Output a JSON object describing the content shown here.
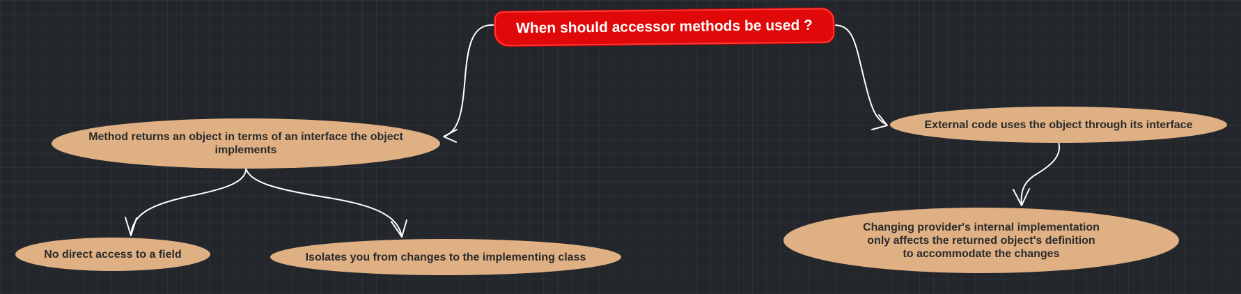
{
  "diagram": {
    "root": {
      "text": "When should accessor methods be used ?",
      "color": "#e00808"
    },
    "nodes": {
      "method_returns": "Method returns an object in terms of an interface the object\nimplements",
      "no_direct_access": "No direct access to a field",
      "isolates": "Isolates you from changes to the implementing class",
      "external_code": "External code uses the object through its interface",
      "changing_provider": "Changing provider's internal implementation\nonly affects the returned object's definition\nto accommodate the changes"
    },
    "node_color": "#dfb084",
    "edge_color": "#ffffff",
    "edges": [
      [
        "root",
        "method_returns"
      ],
      [
        "root",
        "external_code"
      ],
      [
        "method_returns",
        "no_direct_access"
      ],
      [
        "method_returns",
        "isolates"
      ],
      [
        "external_code",
        "changing_provider"
      ]
    ]
  }
}
